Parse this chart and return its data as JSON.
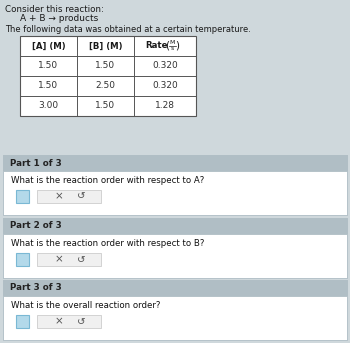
{
  "title_line1": "Consider this reaction:",
  "reaction": "A + B → products",
  "subtitle": "The following data was obtained at a certain temperature.",
  "table_data": [
    [
      "1.50",
      "1.50",
      "0.320"
    ],
    [
      "1.50",
      "2.50",
      "0.320"
    ],
    [
      "3.00",
      "1.50",
      "1.28"
    ]
  ],
  "parts": [
    {
      "label": "Part 1 of 3",
      "question": "What is the reaction order with respect to A?"
    },
    {
      "label": "Part 2 of 3",
      "question": "What is the reaction order with respect to B?"
    },
    {
      "label": "Part 3 of 3",
      "question": "What is the overall reaction order?"
    }
  ],
  "bg_color": "#cfd8dc",
  "panel_header_color": "#b0bec5",
  "panel_body_color": "#ffffff",
  "table_border_color": "#555555",
  "text_dark": "#1a1a1a",
  "text_mid": "#333333",
  "blue_box_color": "#b3d9ea",
  "blue_box_border": "#7ab8d4",
  "button_color": "#f0f0f0",
  "button_border_color": "#cccccc"
}
